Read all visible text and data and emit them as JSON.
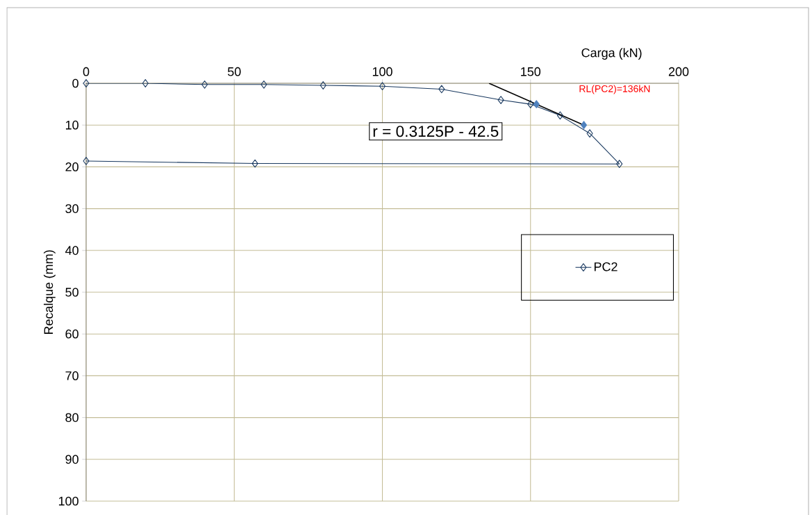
{
  "chart_data": {
    "type": "line",
    "xlabel": "Carga (kN)",
    "ylabel": "Recalque (mm)",
    "xlim": [
      0,
      200
    ],
    "xticks": [
      0,
      50,
      100,
      150,
      200
    ],
    "ylim": [
      100,
      0
    ],
    "yticks": [
      0,
      10,
      20,
      30,
      40,
      50,
      60,
      70,
      80,
      90,
      100
    ],
    "grid": true,
    "legend": "right",
    "marker": "diamond",
    "series": [
      {
        "name": "PC2",
        "color": "#17375e",
        "x": [
          0,
          20,
          40,
          60,
          80,
          100,
          120,
          140,
          150,
          160,
          170,
          180,
          57,
          0
        ],
        "values": [
          0,
          0,
          0.3,
          0.3,
          0.5,
          0.7,
          1.4,
          4,
          5,
          7.7,
          12,
          19.3,
          19.2,
          18.6
        ]
      },
      {
        "type": "line",
        "color": "#000000",
        "marker": "none",
        "x": [
          136,
          168
        ],
        "values": [
          0,
          10
        ]
      },
      {
        "type": "scatter",
        "color": "#4f81bd",
        "x": [
          152,
          168
        ],
        "values": [
          5,
          10
        ]
      }
    ],
    "annotations": [
      "r = 0.3125P - 42.5",
      "RL(PC2)=136kN"
    ]
  }
}
